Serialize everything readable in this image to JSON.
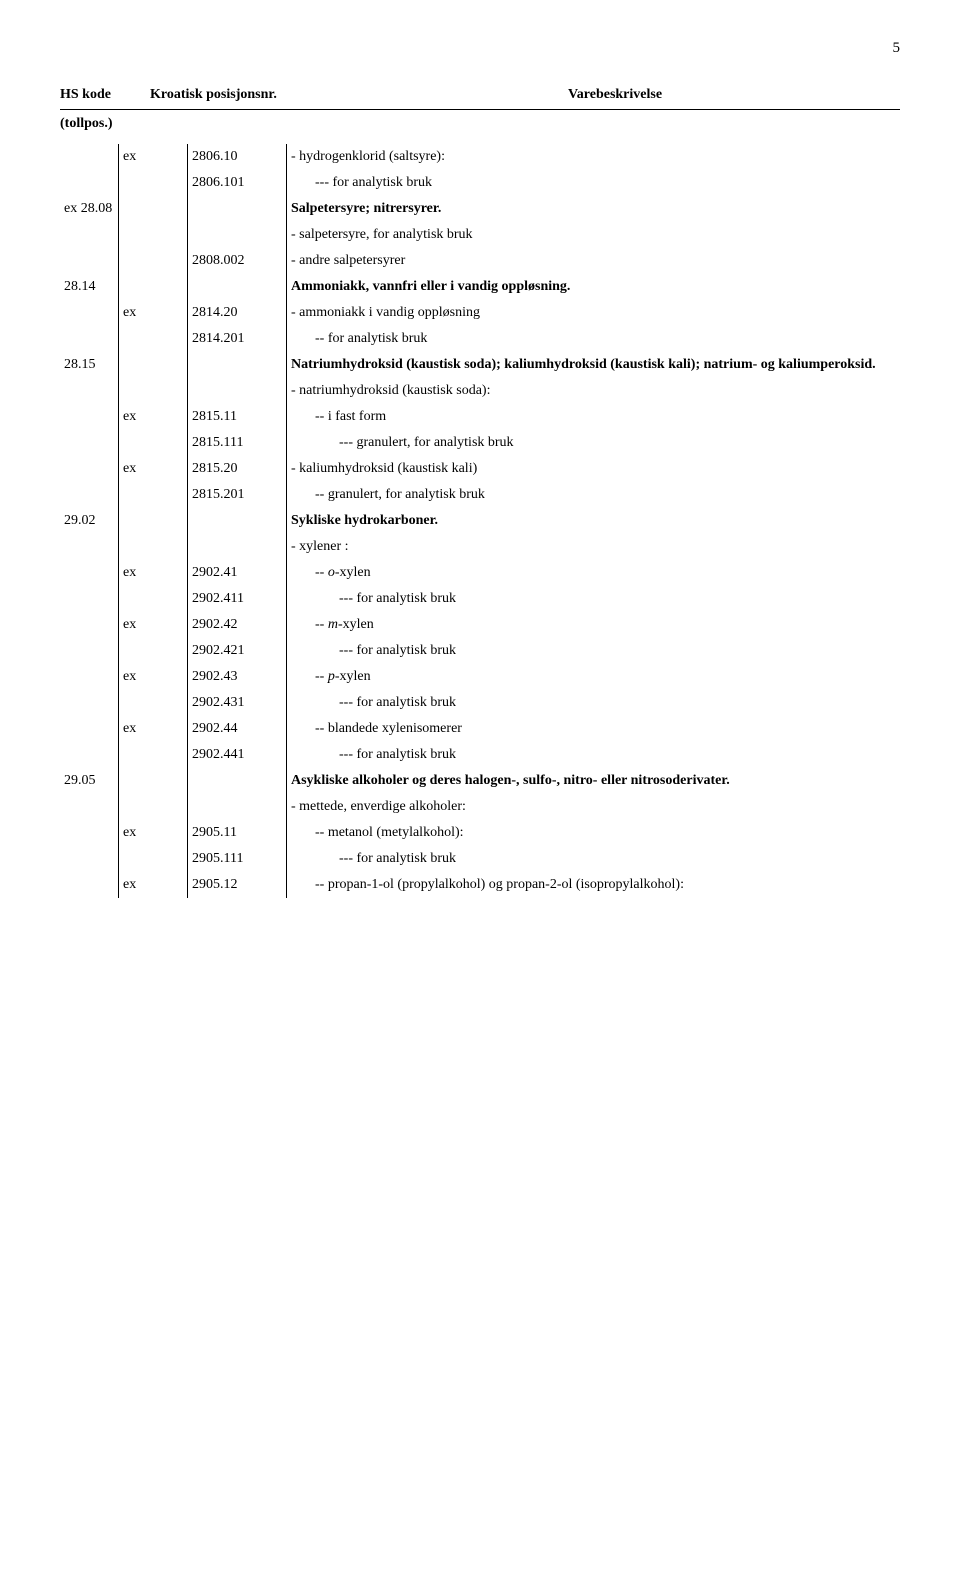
{
  "page_number": "5",
  "header": {
    "hs": "HS kode",
    "kroatisk": "Kroatisk posisjonsnr.",
    "vare": "Varebeskrivelse",
    "tollpos": "(tollpos.)"
  },
  "rows": [
    {
      "hsA": "",
      "hsB": "ex",
      "kro": "2806.10",
      "desc": "-   hydrogenklorid (saltsyre):",
      "bold": false,
      "indent": 0
    },
    {
      "hsA": "",
      "hsB": "",
      "kro": "2806.101",
      "desc": "---    for analytisk bruk",
      "bold": false,
      "indent": 1
    },
    {
      "hsA": "ex 28.08",
      "hsB": "",
      "kro": "",
      "desc": "Salpetersyre; nitrersyrer.",
      "bold": true,
      "indent": 0
    },
    {
      "hsA": "",
      "hsB": "",
      "kro": "",
      "desc": "-   salpetersyre, for analytisk bruk",
      "bold": false,
      "indent": 0
    },
    {
      "hsA": "",
      "hsB": "",
      "kro": "2808.002",
      "desc": "-   andre salpetersyrer",
      "bold": false,
      "indent": 0
    },
    {
      "hsA": "28.14",
      "hsB": "",
      "kro": "",
      "desc": "Ammoniakk, vannfri eller i vandig oppløsning.",
      "bold": true,
      "indent": 0
    },
    {
      "hsA": "",
      "hsB": "ex",
      "kro": "2814.20",
      "desc": "-   ammoniakk i vandig oppløsning",
      "bold": false,
      "indent": 0
    },
    {
      "hsA": "",
      "hsB": "",
      "kro": "2814.201",
      "desc": "--    for analytisk bruk",
      "bold": false,
      "indent": 1
    },
    {
      "hsA": "28.15",
      "hsB": "",
      "kro": "",
      "desc": "Natriumhydroksid (kaustisk soda); kaliumhydroksid (kaustisk kali); natrium- og kaliumperoksid.",
      "bold": true,
      "indent": 0
    },
    {
      "hsA": "",
      "hsB": "",
      "kro": "",
      "desc": "-   natriumhydroksid (kaustisk soda):",
      "bold": false,
      "indent": 0
    },
    {
      "hsA": "",
      "hsB": "ex",
      "kro": "2815.11",
      "desc": "--    i fast form",
      "bold": false,
      "indent": 1
    },
    {
      "hsA": "",
      "hsB": "",
      "kro": "2815.111",
      "desc": "---       granulert, for analytisk bruk",
      "bold": false,
      "indent": 2
    },
    {
      "hsA": "",
      "hsB": "ex",
      "kro": "2815.20",
      "desc": "-   kaliumhydroksid (kaustisk kali)",
      "bold": false,
      "indent": 0
    },
    {
      "hsA": "",
      "hsB": "",
      "kro": "2815.201",
      "desc": "--    granulert, for analytisk bruk",
      "bold": false,
      "indent": 1
    },
    {
      "hsA": "29.02",
      "hsB": "",
      "kro": "",
      "desc": "Sykliske hydrokarboner.",
      "bold": true,
      "indent": 0
    },
    {
      "hsA": "",
      "hsB": "",
      "kro": "",
      "desc": "-   xylener :",
      "bold": false,
      "indent": 0
    },
    {
      "hsA": "",
      "hsB": "ex",
      "kro": "2902.41",
      "desc": "--    <i>o</i>-xylen",
      "bold": false,
      "indent": 1,
      "html": true
    },
    {
      "hsA": "",
      "hsB": "",
      "kro": "2902.411",
      "desc": "---       for analytisk bruk",
      "bold": false,
      "indent": 2
    },
    {
      "hsA": "",
      "hsB": "ex",
      "kro": "2902.42",
      "desc": "--    <i>m</i>-xylen",
      "bold": false,
      "indent": 1,
      "html": true
    },
    {
      "hsA": "",
      "hsB": "",
      "kro": "2902.421",
      "desc": "---       for analytisk bruk",
      "bold": false,
      "indent": 2
    },
    {
      "hsA": "",
      "hsB": "ex",
      "kro": "2902.43",
      "desc": "--    <i>p</i>-xylen",
      "bold": false,
      "indent": 1,
      "html": true
    },
    {
      "hsA": "",
      "hsB": "",
      "kro": "2902.431",
      "desc": "---       for analytisk bruk",
      "bold": false,
      "indent": 2
    },
    {
      "hsA": "",
      "hsB": "ex",
      "kro": "2902.44",
      "desc": "--    blandede xylenisomerer",
      "bold": false,
      "indent": 1
    },
    {
      "hsA": "",
      "hsB": "",
      "kro": "2902.441",
      "desc": "---       for analytisk bruk",
      "bold": false,
      "indent": 2
    },
    {
      "hsA": "29.05",
      "hsB": "",
      "kro": "",
      "desc": "Asykliske alkoholer og deres halogen-, sulfo-, nitro- eller nitrosoderivater.",
      "bold": true,
      "indent": 0
    },
    {
      "hsA": "",
      "hsB": "",
      "kro": "",
      "desc": "-   mettede, enverdige alkoholer:",
      "bold": false,
      "indent": 0
    },
    {
      "hsA": "",
      "hsB": "ex",
      "kro": "2905.11",
      "desc": "--    metanol (metylalkohol):",
      "bold": false,
      "indent": 1
    },
    {
      "hsA": "",
      "hsB": "",
      "kro": "2905.111",
      "desc": "---       for analytisk bruk",
      "bold": false,
      "indent": 2
    },
    {
      "hsA": "",
      "hsB": "ex",
      "kro": "2905.12",
      "desc": "--    propan-1-ol (propylalkohol) og propan-2-ol (isopropylalkohol):",
      "bold": false,
      "indent": 1
    }
  ]
}
